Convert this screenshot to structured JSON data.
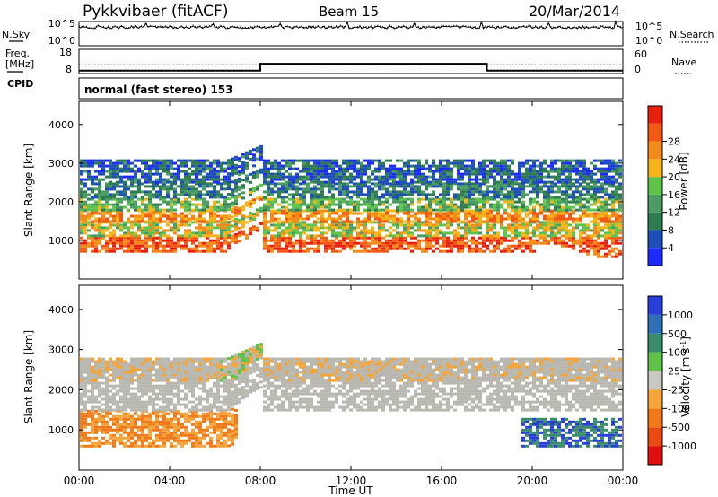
{
  "header": {
    "title": "Pykkvibaer (fitACF)",
    "beam": "Beam 15",
    "date": "20/Mar/2014"
  },
  "colors": {
    "power_scale": [
      "#1e2bff",
      "#1e4fb8",
      "#2f7c52",
      "#4a9c62",
      "#5fc24a",
      "#f5b41a",
      "#f38a1c",
      "#f05a14",
      "#e8200f"
    ],
    "velocity_scale": [
      "#2a3fd8",
      "#2f6fb8",
      "#3b8c6a",
      "#60c24a",
      "#c8c8c0",
      "#f3a43a",
      "#f07a1a",
      "#ea4a14",
      "#e01010"
    ],
    "ground_scatter": "#b9b8b0"
  },
  "chart_data": [
    {
      "type": "line",
      "title": "",
      "series": [
        {
          "name": "N.Sky",
          "style": "solid"
        },
        {
          "name": "N.Search",
          "style": "dotted"
        }
      ],
      "left_ticks": [
        "10^5",
        "10^0"
      ],
      "right_ticks": [
        "10^5",
        "10^0"
      ]
    },
    {
      "type": "line",
      "series": [
        {
          "name": "Freq. [MHz]",
          "style": "solid",
          "points": [
            [
              0,
              8.9
            ],
            [
              8,
              8.9
            ],
            [
              8,
              11.8
            ],
            [
              18,
              11.8
            ],
            [
              18,
              8.9
            ],
            [
              24,
              8.9
            ]
          ]
        },
        {
          "name": "Nave",
          "style": "dotted",
          "points": [
            [
              0,
              20
            ],
            [
              24,
              20
            ]
          ]
        }
      ],
      "left_ticks": [
        "18",
        "8"
      ],
      "right_ticks": [
        "60",
        "0"
      ],
      "cpid_label": "CPID",
      "mode_text": "normal (fast stereo) 153"
    },
    {
      "type": "heatmap",
      "ylabel": "Slant Range [km]",
      "yticks": [
        "1000",
        "2000",
        "3000",
        "4000"
      ],
      "ylim": [
        0,
        4600
      ],
      "colorbar_label": "Power [dB]",
      "colorbar_ticks": [
        "4",
        "8",
        "12",
        "16",
        "20",
        "24",
        "28"
      ],
      "bands": [
        {
          "range_km": [
            750,
            1100
          ],
          "power_db": 28
        },
        {
          "range_km": [
            1100,
            1500
          ],
          "power_db": 18
        },
        {
          "range_km": [
            1500,
            1800
          ],
          "power_db": 24
        },
        {
          "range_km": [
            1800,
            2100
          ],
          "power_db": 14
        },
        {
          "range_km": [
            2100,
            2500
          ],
          "power_db": 8
        },
        {
          "range_km": [
            2500,
            3100
          ],
          "power_db": 5
        }
      ]
    },
    {
      "type": "heatmap",
      "ylabel": "Slant Range [km]",
      "yticks": [
        "1000",
        "2000",
        "3000",
        "4000"
      ],
      "ylim": [
        0,
        4600
      ],
      "xlabel": "Time UT",
      "xticks": [
        "00:00",
        "04:00",
        "08:00",
        "12:00",
        "16:00",
        "20:00",
        "00:00"
      ],
      "xlim": [
        0,
        24
      ],
      "colorbar_label": "Velocity [m s^-1]",
      "colorbar_ticks": [
        "1000",
        "500",
        "100",
        "25",
        "-25",
        "-100",
        "-500",
        "-1000"
      ],
      "bands": [
        {
          "range_km": [
            600,
            1500
          ],
          "velocity": -300
        },
        {
          "range_km": [
            1500,
            2800
          ],
          "velocity": 0
        },
        {
          "range_km": [
            2200,
            2800
          ],
          "velocity": -150
        },
        {
          "range_km": [
            600,
            1300
          ],
          "velocity": 800
        }
      ]
    }
  ],
  "axes": {
    "x_title": "Time UT",
    "x_ticks": [
      "00:00",
      "04:00",
      "08:00",
      "12:00",
      "16:00",
      "20:00",
      "00:00"
    ],
    "power_cb_title": "Power [dB]",
    "velocity_cb_title": "Velocity [m s",
    "velocity_cb_sup": "-1",
    "velocity_cb_close": "]"
  }
}
